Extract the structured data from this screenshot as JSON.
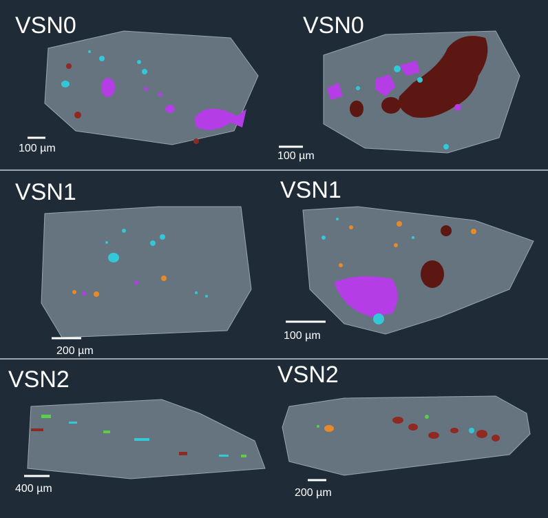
{
  "panels": [
    {
      "label": "VSN0",
      "scale_bar": "100 µm"
    },
    {
      "label": "VSN0",
      "scale_bar": "100 µm"
    },
    {
      "label": "VSN1",
      "scale_bar": "200 µm"
    },
    {
      "label": "VSN1",
      "scale_bar": "100 µm"
    },
    {
      "label": "VSN2",
      "scale_bar": "400 µm"
    },
    {
      "label": "VSN2",
      "scale_bar": "200 µm"
    }
  ]
}
